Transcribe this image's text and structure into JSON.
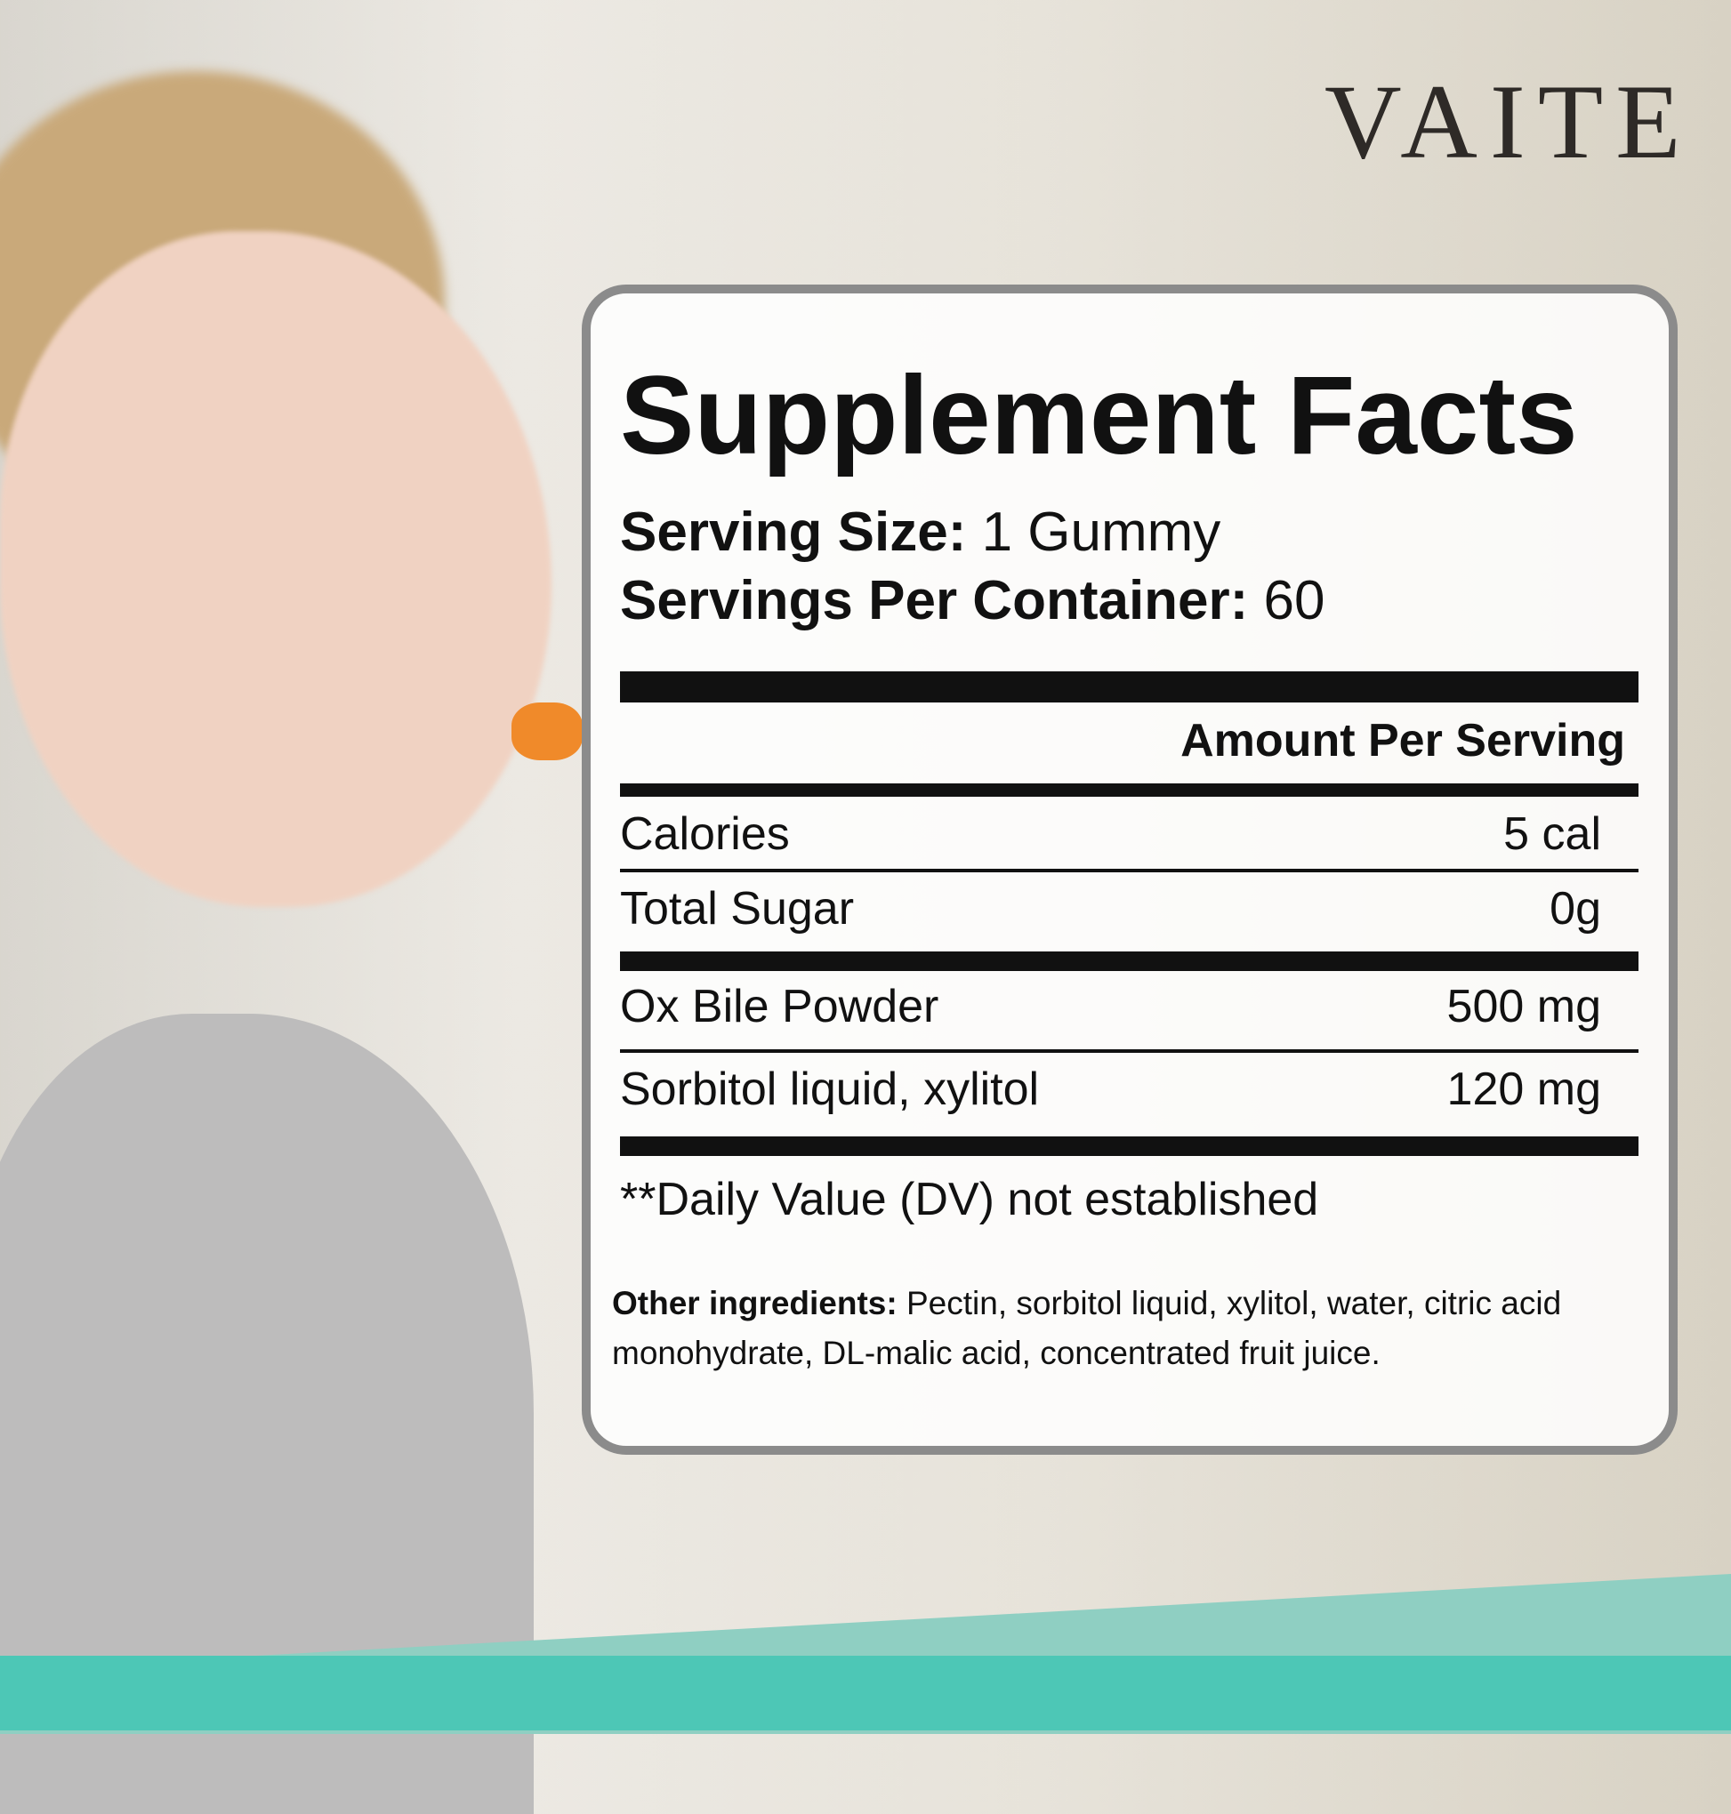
{
  "brand": "VAITE",
  "title": "Supplement Facts",
  "serving_size": {
    "label": "Serving Size:",
    "value": "1 Gummy"
  },
  "servings_per_container": {
    "label": "Servings Per Container:",
    "value": "60"
  },
  "amount_header": "Amount Per Serving",
  "rows": [
    [
      "Calories",
      "5 cal"
    ],
    [
      "Total Sugar",
      "0g"
    ],
    [
      "Ox Bile Powder",
      "500 mg"
    ],
    [
      "Sorbitol liquid, xylitol",
      "120 mg"
    ]
  ],
  "footnote": "**Daily Value (DV) not established",
  "other_ingredients": {
    "label": "Other ingredients:",
    "text": "Pectin, sorbitol liquid, xylitol, water, citric acid monohydrate, DL-malic acid, concentrated fruit juice."
  }
}
